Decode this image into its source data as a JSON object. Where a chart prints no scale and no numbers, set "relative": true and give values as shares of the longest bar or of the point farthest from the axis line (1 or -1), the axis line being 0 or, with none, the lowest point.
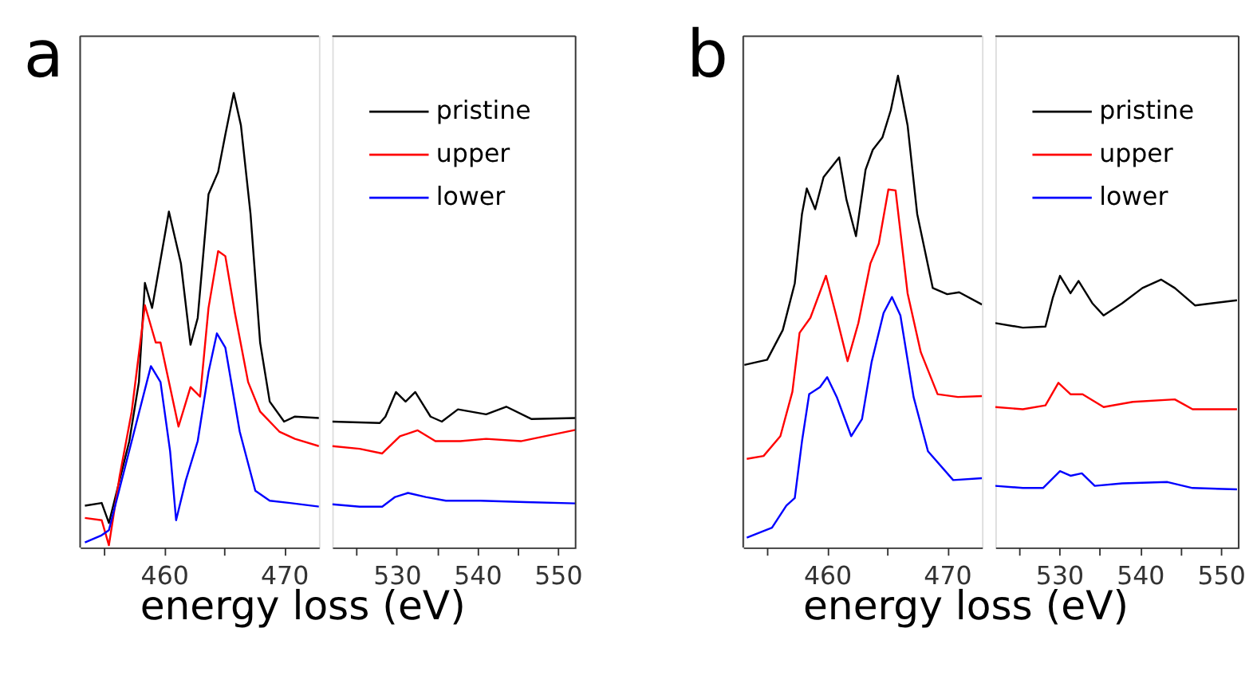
{
  "chart_data": [
    {
      "type": "line",
      "relative": true,
      "xlabel": "energy loss (eV)",
      "annotations": [
        "a"
      ],
      "legend": "top right",
      "grid": false,
      "marker": "none",
      "line_style": "solid",
      "xlim": [
        453.0,
        472.9
      ],
      "xticks": [
        {
          "value": 455,
          "label": null
        },
        460,
        {
          "value": 465,
          "label": null
        },
        470
      ],
      "series": [
        {
          "name": "pristine",
          "color": "#000000",
          "x": [
            453.4,
            454.8,
            455.4,
            457.1,
            457.9,
            458.4,
            459.0,
            460.4,
            461.4,
            462.2,
            462.8,
            463.7,
            464.5,
            465.1,
            465.8,
            466.4,
            467.2,
            468.0,
            468.8,
            470.0,
            470.9,
            472.9
          ],
          "values": [
            0.092,
            0.098,
            0.054,
            0.234,
            0.364,
            0.582,
            0.527,
            0.739,
            0.625,
            0.446,
            0.505,
            0.777,
            0.826,
            0.908,
            1.0,
            0.929,
            0.734,
            0.451,
            0.321,
            0.277,
            0.288,
            0.285
          ]
        },
        {
          "name": "upper",
          "color": "#ff0000",
          "x": [
            453.4,
            454.8,
            455.4,
            456.3,
            457.3,
            458.4,
            459.3,
            459.7,
            461.2,
            462.2,
            463.0,
            463.7,
            464.5,
            465.1,
            465.9,
            467.0,
            468.0,
            469.6,
            470.9,
            472.9
          ],
          "values": [
            0.065,
            0.06,
            0.005,
            0.158,
            0.299,
            0.533,
            0.451,
            0.451,
            0.266,
            0.353,
            0.332,
            0.527,
            0.652,
            0.641,
            0.516,
            0.364,
            0.299,
            0.255,
            0.239,
            0.223
          ]
        },
        {
          "name": "lower",
          "color": "#0000ff",
          "x": [
            453.4,
            454.8,
            455.4,
            457.3,
            458.9,
            459.7,
            460.5,
            461.0,
            461.8,
            462.8,
            463.7,
            464.4,
            465.1,
            466.3,
            467.6,
            468.8,
            470.5,
            472.9
          ],
          "values": [
            0.011,
            0.027,
            0.038,
            0.234,
            0.399,
            0.364,
            0.212,
            0.06,
            0.147,
            0.234,
            0.386,
            0.471,
            0.44,
            0.255,
            0.125,
            0.103,
            0.098,
            0.09
          ]
        }
      ]
    },
    {
      "type": "line",
      "relative": true,
      "grid": false,
      "marker": "none",
      "line_style": "solid",
      "xlim": [
        522.0,
        552.2
      ],
      "xticks": [
        {
          "value": 525,
          "label": null
        },
        530,
        {
          "value": 535,
          "label": null
        },
        540,
        {
          "value": 545,
          "label": null
        },
        550
      ],
      "series": [
        {
          "color": "#000000",
          "x": [
            522.0,
            527.9,
            528.6,
            529.9,
            531.1,
            532.3,
            534.2,
            535.6,
            537.6,
            541.1,
            543.6,
            546.7,
            552.2
          ],
          "values": [
            0.81,
            0.801,
            0.842,
            1.0,
            0.939,
            1.0,
            0.842,
            0.81,
            0.889,
            0.857,
            0.906,
            0.827,
            0.833
          ]
        },
        {
          "color": "#ff0000",
          "x": [
            522.0,
            525.4,
            528.2,
            530.4,
            532.6,
            534.8,
            537.9,
            541.1,
            545.4,
            552.2
          ],
          "values": [
            0.652,
            0.635,
            0.605,
            0.716,
            0.754,
            0.684,
            0.684,
            0.699,
            0.684,
            0.757
          ]
        },
        {
          "color": "#0000ff",
          "x": [
            522.0,
            525.4,
            528.2,
            529.8,
            531.4,
            533.6,
            536.1,
            540.4,
            546.0,
            552.2
          ],
          "values": [
            0.278,
            0.263,
            0.263,
            0.325,
            0.351,
            0.325,
            0.301,
            0.301,
            0.292,
            0.284
          ]
        }
      ]
    },
    {
      "type": "line",
      "relative": true,
      "xlabel": "energy loss (eV)",
      "annotations": [
        "b"
      ],
      "legend": "top right",
      "grid": false,
      "marker": "none",
      "line_style": "solid",
      "xlim": [
        453.0,
        472.9
      ],
      "xticks": [
        {
          "value": 455,
          "label": null
        },
        460,
        {
          "value": 465,
          "label": null
        },
        470
      ],
      "series": [
        {
          "name": "pristine",
          "color": "#000000",
          "x": [
            453.1,
            455.0,
            456.3,
            457.3,
            457.9,
            458.3,
            459.0,
            459.7,
            461.0,
            461.6,
            462.4,
            463.2,
            463.8,
            464.6,
            465.3,
            465.9,
            466.7,
            467.5,
            468.8,
            470.0,
            471.0,
            472.9
          ],
          "values": [
            0.387,
            0.398,
            0.461,
            0.56,
            0.707,
            0.761,
            0.717,
            0.785,
            0.827,
            0.738,
            0.66,
            0.801,
            0.843,
            0.869,
            0.927,
            1.0,
            0.895,
            0.707,
            0.55,
            0.537,
            0.541,
            0.515
          ]
        },
        {
          "name": "upper",
          "color": "#ff0000",
          "x": [
            453.3,
            454.7,
            456.1,
            457.1,
            457.7,
            458.6,
            459.9,
            460.7,
            461.7,
            462.6,
            463.6,
            464.3,
            465.1,
            465.7,
            466.7,
            467.8,
            469.2,
            470.9,
            472.9
          ],
          "values": [
            0.188,
            0.194,
            0.236,
            0.33,
            0.455,
            0.487,
            0.576,
            0.497,
            0.395,
            0.476,
            0.602,
            0.644,
            0.759,
            0.757,
            0.539,
            0.414,
            0.325,
            0.319,
            0.321
          ]
        },
        {
          "name": "lower",
          "color": "#0000ff",
          "x": [
            453.3,
            455.4,
            456.6,
            457.3,
            457.9,
            458.5,
            459.4,
            460.0,
            460.8,
            462.0,
            462.9,
            463.7,
            464.7,
            465.4,
            466.1,
            467.2,
            468.4,
            470.5,
            472.9
          ],
          "values": [
            0.021,
            0.042,
            0.089,
            0.105,
            0.225,
            0.325,
            0.34,
            0.361,
            0.319,
            0.236,
            0.272,
            0.393,
            0.497,
            0.531,
            0.492,
            0.319,
            0.204,
            0.143,
            0.147
          ]
        }
      ]
    },
    {
      "type": "line",
      "relative": true,
      "grid": false,
      "marker": "none",
      "line_style": "solid",
      "xlim": [
        522.1,
        552.2
      ],
      "xticks": [
        {
          "value": 525,
          "label": null
        },
        530,
        {
          "value": 535,
          "label": null
        },
        540,
        {
          "value": 545,
          "label": null
        },
        550
      ],
      "series": [
        {
          "color": "#000000",
          "x": [
            522.1,
            525.5,
            528.3,
            529.2,
            530.1,
            531.4,
            532.4,
            534.1,
            535.5,
            537.8,
            540.3,
            542.6,
            544.3,
            546.8,
            552.0
          ],
          "values": [
            0.826,
            0.809,
            0.813,
            0.918,
            1.0,
            0.936,
            0.981,
            0.899,
            0.854,
            0.899,
            0.955,
            0.986,
            0.955,
            0.891,
            0.91
          ]
        },
        {
          "color": "#ff0000",
          "x": [
            522.1,
            525.5,
            528.3,
            529.9,
            531.4,
            532.9,
            535.5,
            539.1,
            544.3,
            546.5,
            552.0
          ],
          "values": [
            0.517,
            0.509,
            0.523,
            0.606,
            0.564,
            0.564,
            0.517,
            0.536,
            0.545,
            0.509,
            0.509
          ]
        },
        {
          "color": "#0000ff",
          "x": [
            522.1,
            525.5,
            528.0,
            530.1,
            531.4,
            532.8,
            534.4,
            537.8,
            543.4,
            546.5,
            552.0
          ],
          "values": [
            0.227,
            0.219,
            0.219,
            0.281,
            0.264,
            0.273,
            0.227,
            0.236,
            0.241,
            0.219,
            0.214
          ]
        }
      ]
    }
  ]
}
